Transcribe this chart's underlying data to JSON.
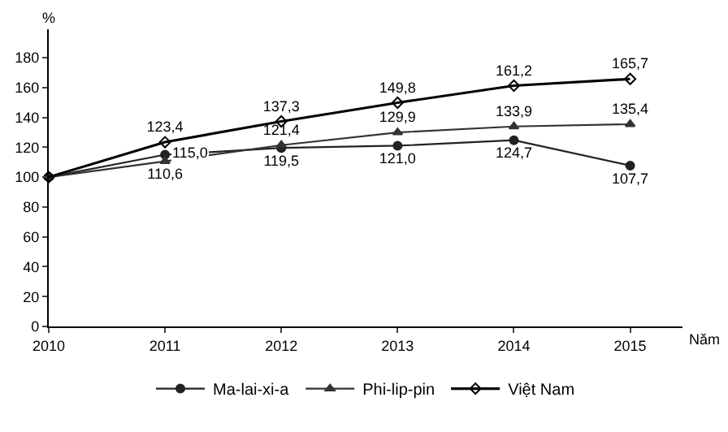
{
  "chart_data": {
    "type": "line",
    "xlabel": "Năm",
    "ylabel": "%",
    "x": [
      2010,
      2011,
      2012,
      2013,
      2014,
      2015
    ],
    "series": [
      {
        "name": "Ma-lai-xi-a",
        "color": "#222222",
        "marker": "circle",
        "values": [
          100,
          115.0,
          119.5,
          121.0,
          124.7,
          107.7
        ],
        "value_labels": [
          null,
          "115,0",
          "119,5",
          "121,0",
          "124,7",
          "107,7"
        ]
      },
      {
        "name": "Phi-lip-pin",
        "color": "#333333",
        "marker": "triangle",
        "values": [
          100,
          110.6,
          121.4,
          129.9,
          133.9,
          135.4
        ],
        "value_labels": [
          null,
          "110,6",
          "121,4",
          "129,9",
          "133,9",
          "135,4"
        ]
      },
      {
        "name": "Việt Nam",
        "color": "#000000",
        "marker": "diamond",
        "values": [
          100,
          123.4,
          137.3,
          149.8,
          161.2,
          165.7
        ],
        "value_labels": [
          null,
          "123,4",
          "137,3",
          "149,8",
          "161,2",
          "165,7"
        ]
      }
    ],
    "xlim": [
      2010,
      2015.45
    ],
    "xticks": [
      2010,
      2011,
      2012,
      2013,
      2014,
      2015
    ],
    "ylim": [
      0,
      199
    ],
    "yticks": [
      0,
      20,
      40,
      60,
      80,
      100,
      120,
      140,
      160,
      180
    ],
    "grid": false,
    "legend": "bottom"
  }
}
